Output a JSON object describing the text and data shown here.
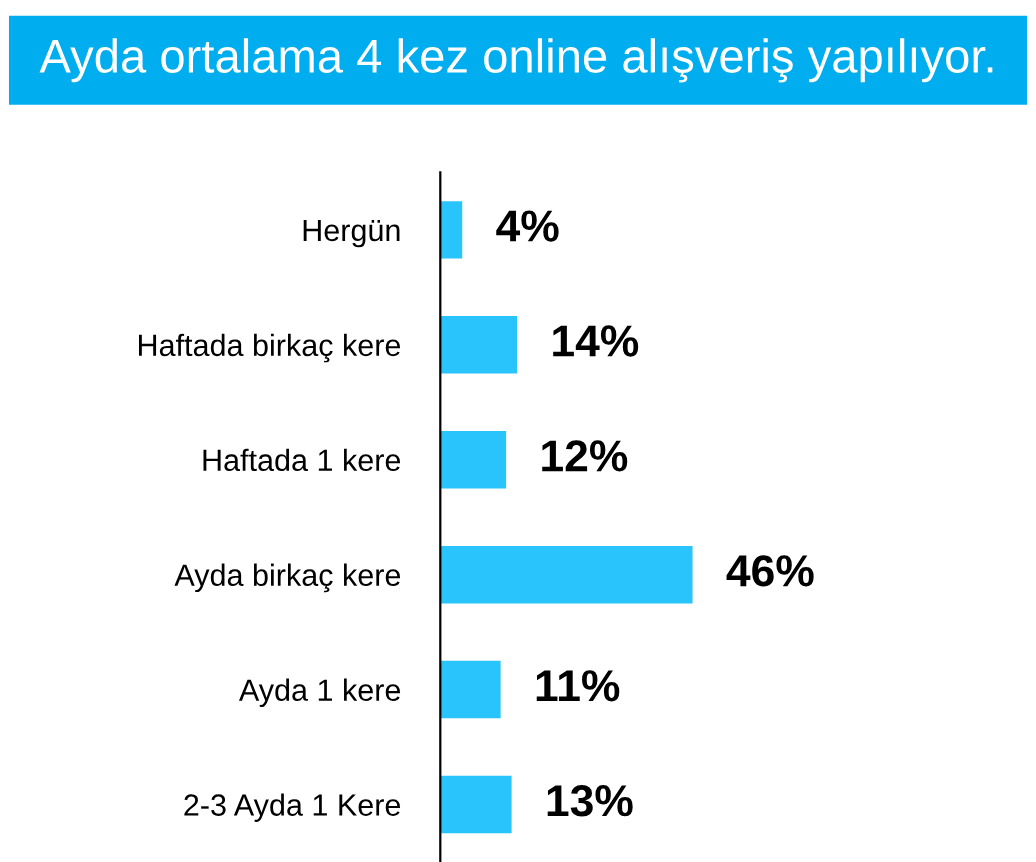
{
  "chart_data": {
    "type": "bar",
    "orientation": "horizontal",
    "title": "Ayda ortalama 4 kez online alışveriş yapılıyor.",
    "categories": [
      "Hergün",
      "Haftada birkaç kere",
      "Haftada 1 kere",
      "Ayda birkaç kere",
      "Ayda 1 kere",
      "2-3 Ayda 1 Kere"
    ],
    "values": [
      4,
      14,
      12,
      46,
      11,
      13
    ],
    "value_labels": [
      "4%",
      "14%",
      "12%",
      "46%",
      "11%",
      "13%"
    ],
    "color": "#29c4fb",
    "grid": false,
    "legend": false
  }
}
